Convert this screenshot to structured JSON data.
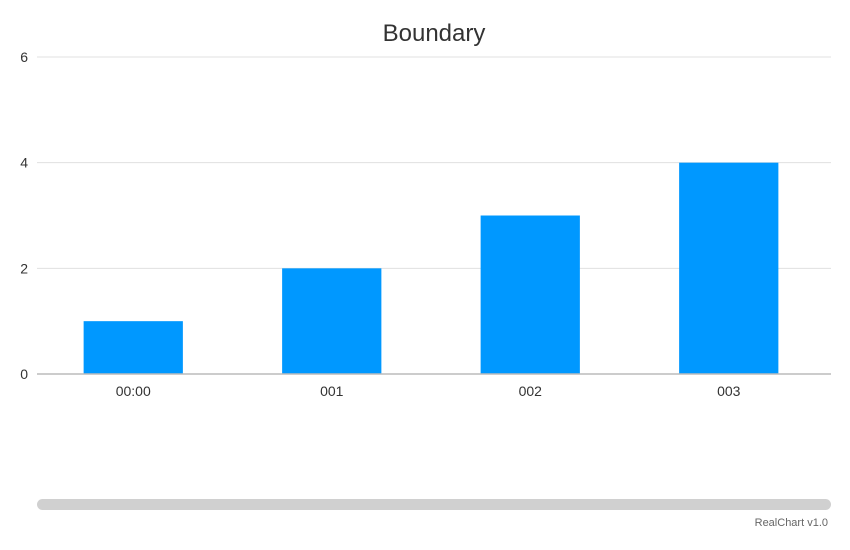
{
  "chart_data": {
    "type": "bar",
    "title": "Boundary",
    "categories": [
      "00:00",
      "001",
      "002",
      "003"
    ],
    "values": [
      1,
      2,
      3,
      4
    ],
    "ylim": [
      0,
      6
    ],
    "yticks": [
      0,
      2,
      4,
      6
    ],
    "grid": true,
    "bar_color": "#0098ff"
  },
  "credit": "RealChart v1.0",
  "colors": {
    "grid": "#e0e0e0",
    "axis": "#bbbbbb",
    "scrollbar": "#d0d0d0"
  }
}
